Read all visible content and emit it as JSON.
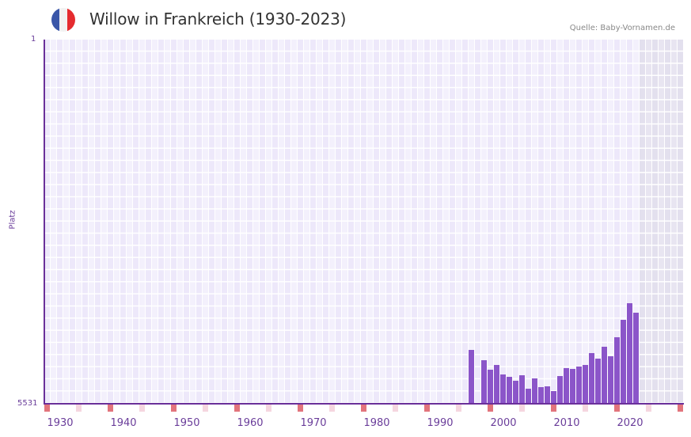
{
  "header": {
    "title": "Willow in Frankreich (1930-2023)",
    "source": "Quelle: Baby-Vornamen.de",
    "flag": {
      "name": "france-flag-icon",
      "colors": [
        "#3a56a8",
        "#f2f2f2",
        "#e52b2f"
      ]
    }
  },
  "axis": {
    "y_top_label": "1",
    "y_bottom_label": "5531",
    "y_title": "Platz",
    "x_ticks": [
      "1930",
      "1940",
      "1950",
      "1960",
      "1970",
      "1980",
      "1990",
      "2000",
      "2010",
      "2020"
    ]
  },
  "colors": {
    "bar": "#8b55c9",
    "axis": "#6a2f9a",
    "decade_marker": "#e2747c",
    "half_decade_marker": "#f5d6df"
  },
  "chart_data": {
    "type": "bar",
    "title": "Willow in Frankreich (1930-2023)",
    "xlabel": "",
    "ylabel": "Platz",
    "y_inverted": true,
    "ylim": [
      5531,
      1
    ],
    "x_range": [
      1928,
      2028
    ],
    "shaded_future_from": 2022,
    "grid": true,
    "categories": [
      "1995",
      "1997",
      "1998",
      "1999",
      "2000",
      "2001",
      "2002",
      "2003",
      "2004",
      "2005",
      "2006",
      "2007",
      "2008",
      "2009",
      "2010",
      "2011",
      "2012",
      "2013",
      "2014",
      "2015",
      "2016",
      "2017",
      "2018",
      "2019",
      "2020",
      "2021"
    ],
    "values": [
      4713,
      4870,
      5014,
      4942,
      5086,
      5122,
      5182,
      5098,
      5303,
      5146,
      5279,
      5267,
      5339,
      5110,
      4990,
      5002,
      4966,
      4942,
      4762,
      4846,
      4666,
      4810,
      4521,
      4257,
      4004,
      4149
    ],
    "source": "Quelle: Baby-Vornamen.de"
  }
}
